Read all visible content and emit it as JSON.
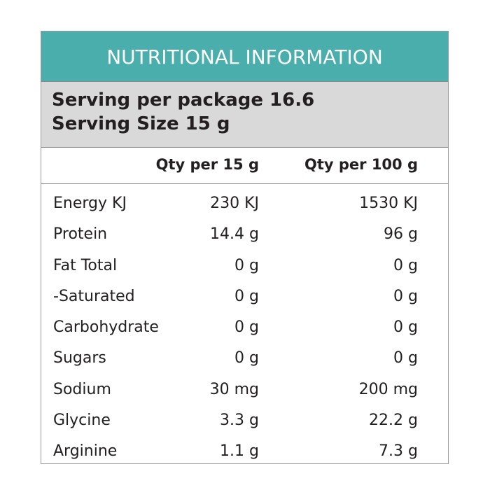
{
  "title": "NUTRITIONAL INFORMATION",
  "serving": {
    "per_package": "Serving per package 16.6",
    "size": "Serving Size 15 g"
  },
  "columns": {
    "qty_per_serving": "Qty per 15 g",
    "qty_per_100": "Qty per 100 g"
  },
  "rows": [
    {
      "label": "Energy KJ",
      "per_serving": "230 KJ",
      "per_100": "1530 KJ"
    },
    {
      "label": "Protein",
      "per_serving": "14.4 g",
      "per_100": "96 g"
    },
    {
      "label": "Fat Total",
      "per_serving": "0 g",
      "per_100": "0 g"
    },
    {
      "label": "-Saturated",
      "per_serving": "0 g",
      "per_100": "0 g"
    },
    {
      "label": "Carbohydrate",
      "per_serving": "0 g",
      "per_100": "0 g"
    },
    {
      "label": "Sugars",
      "per_serving": "0 g",
      "per_100": "0 g"
    },
    {
      "label": "Sodium",
      "per_serving": "30 mg",
      "per_100": "200 mg"
    },
    {
      "label": "Glycine",
      "per_serving": "3.3 g",
      "per_100": "22.2 g"
    },
    {
      "label": "Arginine",
      "per_serving": "1.1 g",
      "per_100": "7.3 g"
    }
  ],
  "colors": {
    "title_background": "#4aaeac",
    "serving_background": "#d9d9d9",
    "border": "#9a9a9a",
    "text": "#231f20"
  }
}
